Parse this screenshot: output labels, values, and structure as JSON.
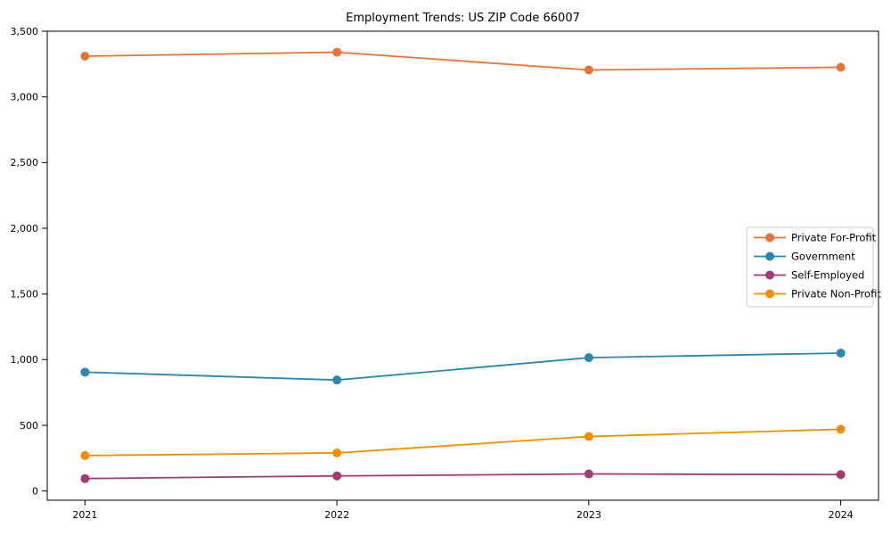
{
  "title": "Employment Trends: US ZIP Code 66007",
  "chart_data": {
    "type": "line",
    "title": "Employment Trends: US ZIP Code 66007",
    "xlabel": "",
    "ylabel": "",
    "x": [
      2021,
      2022,
      2023,
      2024
    ],
    "x_tick_labels": [
      "2021",
      "2022",
      "2023",
      "2024"
    ],
    "series": [
      {
        "name": "Private For-Profit",
        "color": "#E8743B",
        "values": [
          3310,
          3340,
          3205,
          3225
        ]
      },
      {
        "name": "Government",
        "color": "#2E86AB",
        "values": [
          905,
          845,
          1015,
          1050
        ]
      },
      {
        "name": "Self-Employed",
        "color": "#A23B72",
        "values": [
          95,
          115,
          130,
          125
        ]
      },
      {
        "name": "Private Non-Profit",
        "color": "#F18F01",
        "values": [
          270,
          290,
          415,
          470
        ]
      }
    ],
    "ylim": [
      -70,
      3500
    ],
    "yticks": [
      0,
      500,
      1000,
      1500,
      2000,
      2500,
      3000,
      3500
    ],
    "ytick_labels": [
      "0",
      "500",
      "1,000",
      "1,500",
      "2,000",
      "2,500",
      "3,000",
      "3,500"
    ],
    "grid": false,
    "legend_position": "center-right",
    "marker": "circle",
    "axis_color": "#000000",
    "legend_border_color": "#cccccc",
    "background_color": "#ffffff"
  }
}
